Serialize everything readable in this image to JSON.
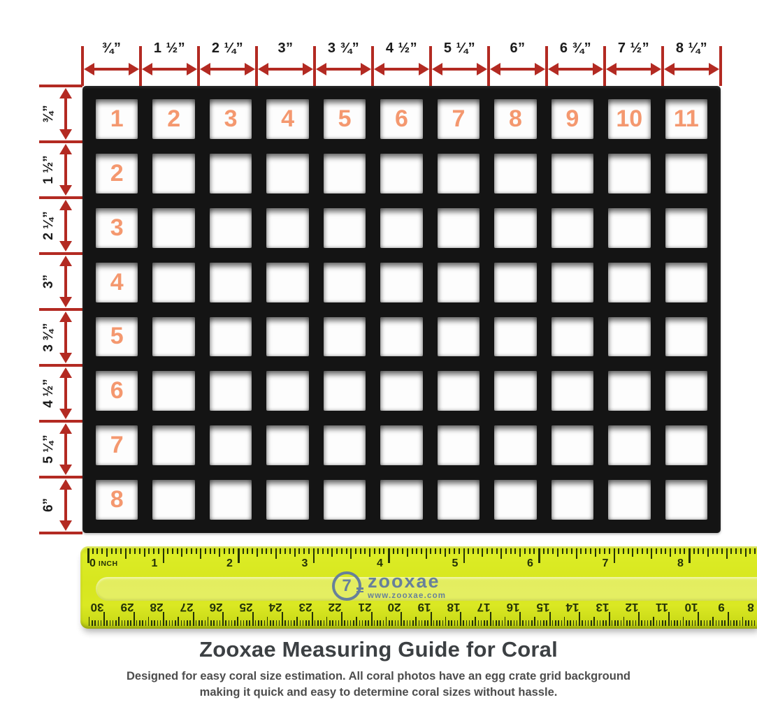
{
  "colors": {
    "red": "#b32a22",
    "orange": "#f4986f",
    "ruler_yellow": "#d7e61f",
    "logo_slate": "#67809a",
    "grid_black": "#141414"
  },
  "top_measurements": [
    "¾”",
    "1 ½”",
    "2 ¼”",
    "3”",
    "3 ¾”",
    "4 ½”",
    "5 ¼”",
    "6”",
    "6 ¾”",
    "7 ½”",
    "8 ¼”"
  ],
  "left_measurements": [
    "¾”",
    "1 ½”",
    "2 ¼”",
    "3”",
    "3 ¾”",
    "4 ½”",
    "5 ¼”",
    "6”"
  ],
  "grid": {
    "columns": 11,
    "rows": 8,
    "column_numbers": [
      "1",
      "2",
      "3",
      "4",
      "5",
      "6",
      "7",
      "8",
      "9",
      "10",
      "11"
    ],
    "row_numbers": [
      "2",
      "3",
      "4",
      "5",
      "6",
      "7",
      "8"
    ]
  },
  "ruler": {
    "inch_labels": [
      "0",
      "1",
      "2",
      "3",
      "4",
      "5",
      "6",
      "7",
      "8"
    ],
    "inch_unit": "INCH",
    "cm_start": 30,
    "cm_end": 8,
    "logo": {
      "symbol": "7",
      "brand": "zooxae",
      "url": "www.zooxae.com"
    }
  },
  "footer": {
    "title": "Zooxae Measuring Guide for Coral",
    "subtitle": "Designed for easy coral size estimation. All coral photos have an egg crate grid background making it quick and easy to determine coral sizes without hassle."
  }
}
